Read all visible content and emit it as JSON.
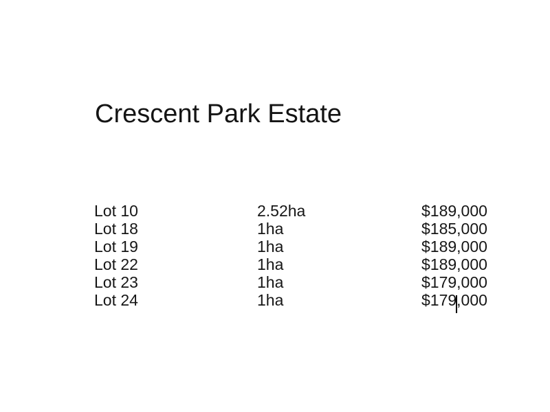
{
  "page": {
    "background_color": "#ffffff",
    "text_color": "#161616"
  },
  "document": {
    "title": "Crescent Park Estate",
    "listings": [
      {
        "lot": "Lot 10",
        "area": "2.52ha",
        "price": "$189,000"
      },
      {
        "lot": "Lot 18",
        "area": "1ha",
        "price": "$185,000"
      },
      {
        "lot": "Lot 19",
        "area": "1ha",
        "price": "$189,000"
      },
      {
        "lot": "Lot 22",
        "area": "1ha",
        "price": "$189,000"
      },
      {
        "lot": "Lot 23",
        "area": "1ha",
        "price": "$179,000"
      },
      {
        "lot": "Lot 24",
        "area": "1ha",
        "price": "$179,000"
      }
    ],
    "caret": {
      "row_lot": "Lot 24",
      "position_in_text": "between $179 and ,000"
    }
  }
}
